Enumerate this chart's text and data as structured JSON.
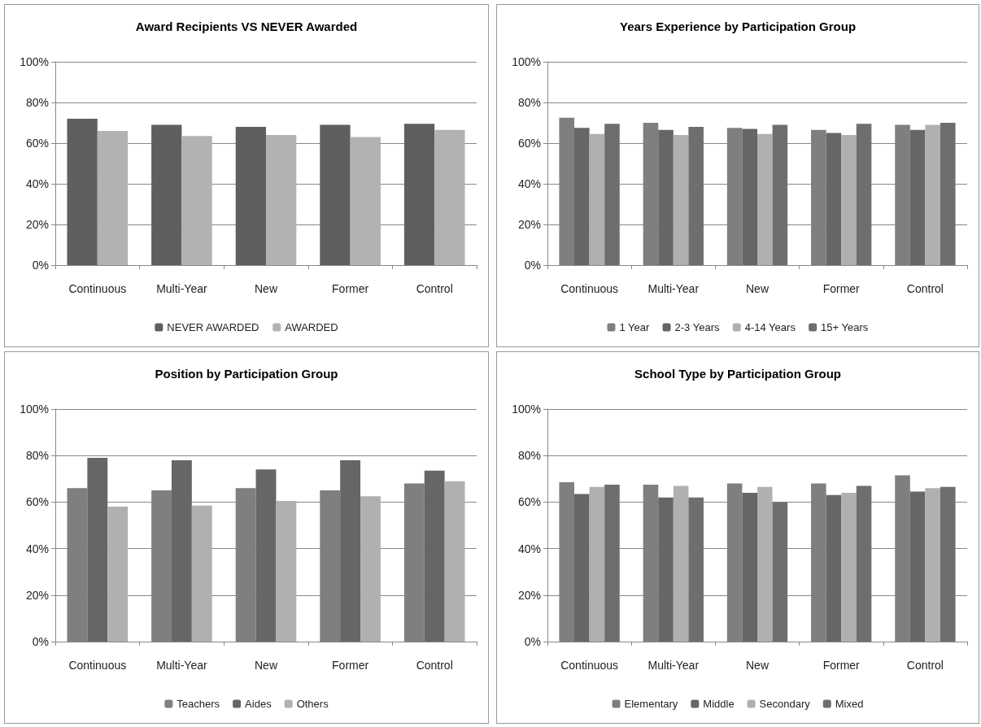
{
  "chart_data": [
    {
      "type": "bar",
      "title": "Award Recipients VS NEVER Awarded",
      "categories": [
        "Continuous",
        "Multi-Year",
        "New",
        "Former",
        "Control"
      ],
      "series": [
        {
          "name": "NEVER AWARDED",
          "color": "#5f5f5f",
          "values": [
            72,
            69,
            68,
            69,
            69.5
          ]
        },
        {
          "name": "AWARDED",
          "color": "#b2b2b2",
          "values": [
            66,
            63.5,
            64,
            63,
            66.5
          ]
        }
      ],
      "ylim": [
        0,
        100
      ],
      "yticks": [
        {
          "value": 0,
          "label": "0%"
        },
        {
          "value": 20,
          "label": "20%"
        },
        {
          "value": 40,
          "label": "40%"
        },
        {
          "value": 60,
          "label": "60%"
        },
        {
          "value": 80,
          "label": "80%"
        },
        {
          "value": 100,
          "label": "100%"
        }
      ],
      "grid": "y",
      "legend": "bottom"
    },
    {
      "type": "bar",
      "title": "Years Experience by Participation Group",
      "categories": [
        "Continuous",
        "Multi-Year",
        "New",
        "Former",
        "Control"
      ],
      "series": [
        {
          "name": "1 Year",
          "color": "#7f7f7f",
          "values": [
            72.5,
            70,
            67.5,
            66.5,
            69
          ]
        },
        {
          "name": "2-3 Years",
          "color": "#666666",
          "values": [
            67.5,
            66.5,
            67,
            65,
            66.5
          ]
        },
        {
          "name": "4-14 Years",
          "color": "#b0b0b0",
          "values": [
            64.5,
            64,
            64.5,
            64,
            69
          ]
        },
        {
          "name": "15+ Years",
          "color": "#6e6e6e",
          "values": [
            69.5,
            68,
            69,
            69.5,
            70
          ]
        }
      ],
      "ylim": [
        0,
        100
      ],
      "yticks": [
        {
          "value": 0,
          "label": "0%"
        },
        {
          "value": 20,
          "label": "20%"
        },
        {
          "value": 40,
          "label": "40%"
        },
        {
          "value": 60,
          "label": "60%"
        },
        {
          "value": 80,
          "label": "80%"
        },
        {
          "value": 100,
          "label": "100%"
        }
      ],
      "grid": "y",
      "legend": "bottom"
    },
    {
      "type": "bar",
      "title": "Position by Participation Group",
      "categories": [
        "Continuous",
        "Multi-Year",
        "New",
        "Former",
        "Control"
      ],
      "series": [
        {
          "name": "Teachers",
          "color": "#7f7f7f",
          "values": [
            66,
            65,
            66,
            65,
            68
          ]
        },
        {
          "name": "Aides",
          "color": "#666666",
          "values": [
            79,
            78,
            74,
            78,
            73.5
          ]
        },
        {
          "name": "Others",
          "color": "#b0b0b0",
          "values": [
            58,
            58.5,
            60.5,
            62.5,
            69
          ]
        }
      ],
      "ylim": [
        0,
        100
      ],
      "yticks": [
        {
          "value": 0,
          "label": "0%"
        },
        {
          "value": 20,
          "label": "20%"
        },
        {
          "value": 40,
          "label": "40%"
        },
        {
          "value": 60,
          "label": "60%"
        },
        {
          "value": 80,
          "label": "80%"
        },
        {
          "value": 100,
          "label": "100%"
        }
      ],
      "grid": "y",
      "legend": "bottom"
    },
    {
      "type": "bar",
      "title": "School Type by Participation Group",
      "categories": [
        "Continuous",
        "Multi-Year",
        "New",
        "Former",
        "Control"
      ],
      "series": [
        {
          "name": "Elementary",
          "color": "#7f7f7f",
          "values": [
            68.5,
            67.5,
            68,
            68,
            71.5
          ]
        },
        {
          "name": "Middle",
          "color": "#666666",
          "values": [
            63.5,
            62,
            64,
            63,
            64.5
          ]
        },
        {
          "name": "Secondary",
          "color": "#b0b0b0",
          "values": [
            66.5,
            67,
            66.5,
            64,
            66
          ]
        },
        {
          "name": "Mixed",
          "color": "#6e6e6e",
          "values": [
            67.5,
            62,
            60,
            67,
            66.5
          ]
        }
      ],
      "ylim": [
        0,
        100
      ],
      "yticks": [
        {
          "value": 0,
          "label": "0%"
        },
        {
          "value": 20,
          "label": "20%"
        },
        {
          "value": 40,
          "label": "40%"
        },
        {
          "value": 60,
          "label": "60%"
        },
        {
          "value": 80,
          "label": "80%"
        },
        {
          "value": 100,
          "label": "100%"
        }
      ],
      "grid": "y",
      "legend": "bottom"
    }
  ]
}
